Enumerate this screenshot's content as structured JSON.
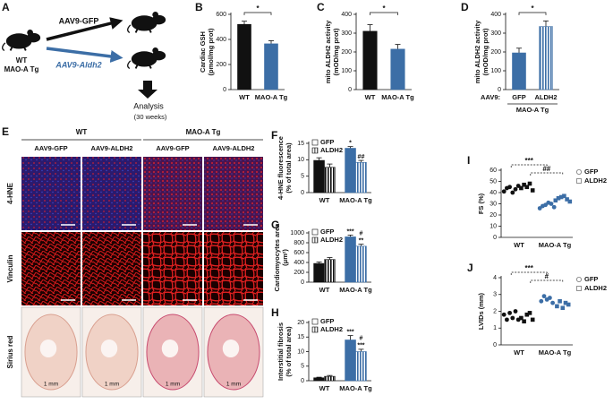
{
  "panel_labels": [
    "A",
    "B",
    "C",
    "D",
    "E",
    "F",
    "G",
    "H",
    "I",
    "J"
  ],
  "panel_a": {
    "treatments": [
      "AAV9-GFP",
      "AAV9-Aldh2"
    ],
    "mouse_label": [
      "WT",
      "MAO-A Tg"
    ],
    "outcome": "Analysis",
    "duration": "(30 weeks)"
  },
  "panel_e": {
    "groups": [
      "WT",
      "MAO-A Tg"
    ],
    "columns": [
      "AAV9-GFP",
      "AAV9-ALDH2",
      "AAV9-GFP",
      "AAV9-ALDH2"
    ],
    "rows": [
      "4-HNE",
      "Vinculin",
      "Sirius red"
    ],
    "scale_label": "1 mm"
  },
  "chart_data": [
    {
      "type": "bar",
      "ylabel": [
        "Cardiac GSH",
        "(pmol/mg prot)"
      ],
      "categories": [
        "WT",
        "MAO-A Tg"
      ],
      "values": [
        520,
        365
      ],
      "errors": [
        25,
        25
      ],
      "colors": [
        "#111111",
        "#3c6ea6"
      ],
      "ylim": [
        0,
        600
      ],
      "yticks": [
        0,
        200,
        400,
        600
      ],
      "annotations": [
        "*"
      ]
    },
    {
      "type": "bar",
      "ylabel": [
        "mito ALDH2 activity",
        "(mOD/mg prot)"
      ],
      "categories": [
        "WT",
        "MAO-A Tg"
      ],
      "values": [
        310,
        215
      ],
      "errors": [
        35,
        25
      ],
      "colors": [
        "#111111",
        "#3c6ea6"
      ],
      "ylim": [
        0,
        400
      ],
      "yticks": [
        0,
        100,
        200,
        300,
        400
      ],
      "annotations": [
        "*"
      ]
    },
    {
      "type": "bar",
      "ylabel": [
        "mito ALDH2 activity",
        "(mOD/mg prot)"
      ],
      "categories": [
        "GFP",
        "ALDH2"
      ],
      "values": [
        195,
        335
      ],
      "errors": [
        25,
        30
      ],
      "colors": [
        "#3c6ea6",
        "#3c6ea6"
      ],
      "hatch": [
        false,
        true
      ],
      "x_prefix": "AAV9:",
      "group_label": "MAO-A Tg",
      "ylim": [
        0,
        400
      ],
      "yticks": [
        0,
        100,
        200,
        300,
        400
      ],
      "annotations": [
        "*"
      ]
    },
    {
      "type": "grouped_bar",
      "ylabel": [
        "4-HNE fluorescence",
        "(% of total area)"
      ],
      "categories": [
        "WT",
        "MAO-A Tg"
      ],
      "colors": [
        "#111111",
        "#3c6ea6"
      ],
      "legend_colors": [
        "#ffffff",
        "#7f7f7f"
      ],
      "series": [
        {
          "name": "GFP",
          "values": [
            9.8,
            13.5
          ],
          "errors": [
            0.8,
            0.5
          ],
          "hatch": false
        },
        {
          "name": "ALDH2",
          "values": [
            7.7,
            9.2
          ],
          "errors": [
            1,
            0.6
          ],
          "hatch": true
        }
      ],
      "ylim": [
        0,
        15
      ],
      "yticks": [
        0,
        5,
        10,
        15
      ],
      "annotations": [
        "*",
        "##"
      ]
    },
    {
      "type": "grouped_bar",
      "ylabel": [
        "Cardiomyocytes area",
        "(μm²)"
      ],
      "categories": [
        "WT",
        "MAO-A Tg"
      ],
      "colors": [
        "#111111",
        "#3c6ea6"
      ],
      "legend_colors": [
        "#ffffff",
        "#7f7f7f"
      ],
      "series": [
        {
          "name": "GFP",
          "values": [
            380,
            920
          ],
          "errors": [
            30,
            35
          ],
          "hatch": false
        },
        {
          "name": "ALDH2",
          "values": [
            460,
            730
          ],
          "errors": [
            40,
            40
          ],
          "hatch": true
        }
      ],
      "ylim": [
        0,
        1000
      ],
      "yticks": [
        0,
        200,
        400,
        600,
        800,
        1000
      ],
      "annotations": [
        "***",
        "#",
        "**"
      ]
    },
    {
      "type": "grouped_bar",
      "ylabel": [
        "Interstitial fibrosis",
        "(% of total area)"
      ],
      "categories": [
        "WT",
        "MAO-A Tg"
      ],
      "colors": [
        "#111111",
        "#3c6ea6"
      ],
      "legend_colors": [
        "#ffffff",
        "#7f7f7f"
      ],
      "series": [
        {
          "name": "GFP",
          "values": [
            1,
            14
          ],
          "errors": [
            0.2,
            1.5
          ],
          "hatch": false
        },
        {
          "name": "ALDH2",
          "values": [
            1.5,
            10
          ],
          "errors": [
            0.3,
            0.8
          ],
          "hatch": true
        }
      ],
      "ylim": [
        0,
        20
      ],
      "yticks": [
        0,
        5,
        10,
        15,
        20
      ],
      "annotations": [
        "***",
        "#",
        "***"
      ]
    },
    {
      "type": "dot_plot",
      "ylabel": [
        "FS (%)"
      ],
      "categories": [
        "WT",
        "MAO-A Tg"
      ],
      "colors": [
        "#111111",
        "#3c6ea6"
      ],
      "series": [
        {
          "name": "GFP",
          "marker": "circle",
          "values": [
            [
              41,
              44,
              45,
              40,
              43,
              46
            ],
            [
              26,
              28,
              29,
              31,
              30,
              27
            ]
          ]
        },
        {
          "name": "ALDH2",
          "marker": "square",
          "values": [
            [
              44,
              47,
              45,
              48,
              42
            ],
            [
              33,
              35,
              36,
              37,
              34,
              32
            ]
          ]
        }
      ],
      "ylim": [
        0,
        60
      ],
      "yticks": [
        0,
        10,
        20,
        30,
        40,
        50,
        60
      ],
      "annotations": [
        "***",
        "##"
      ]
    },
    {
      "type": "dot_plot",
      "ylabel": [
        "LVIDs (mm)"
      ],
      "categories": [
        "WT",
        "MAO-A Tg"
      ],
      "colors": [
        "#111111",
        "#3c6ea6"
      ],
      "series": [
        {
          "name": "GFP",
          "marker": "circle",
          "values": [
            [
              1.8,
              1.5,
              1.9,
              1.6,
              2.0,
              1.5
            ],
            [
              2.6,
              2.9,
              2.7,
              2.8,
              2.5
            ]
          ]
        },
        {
          "name": "ALDH2",
          "marker": "square",
          "values": [
            [
              1.6,
              1.4,
              1.8,
              1.9,
              1.5
            ],
            [
              2.3,
              2.6,
              2.2,
              2.5,
              2.4
            ]
          ]
        }
      ],
      "ylim": [
        0,
        4
      ],
      "yticks": [
        0,
        1,
        2,
        3,
        4
      ],
      "annotations": [
        "***",
        "#"
      ]
    }
  ]
}
